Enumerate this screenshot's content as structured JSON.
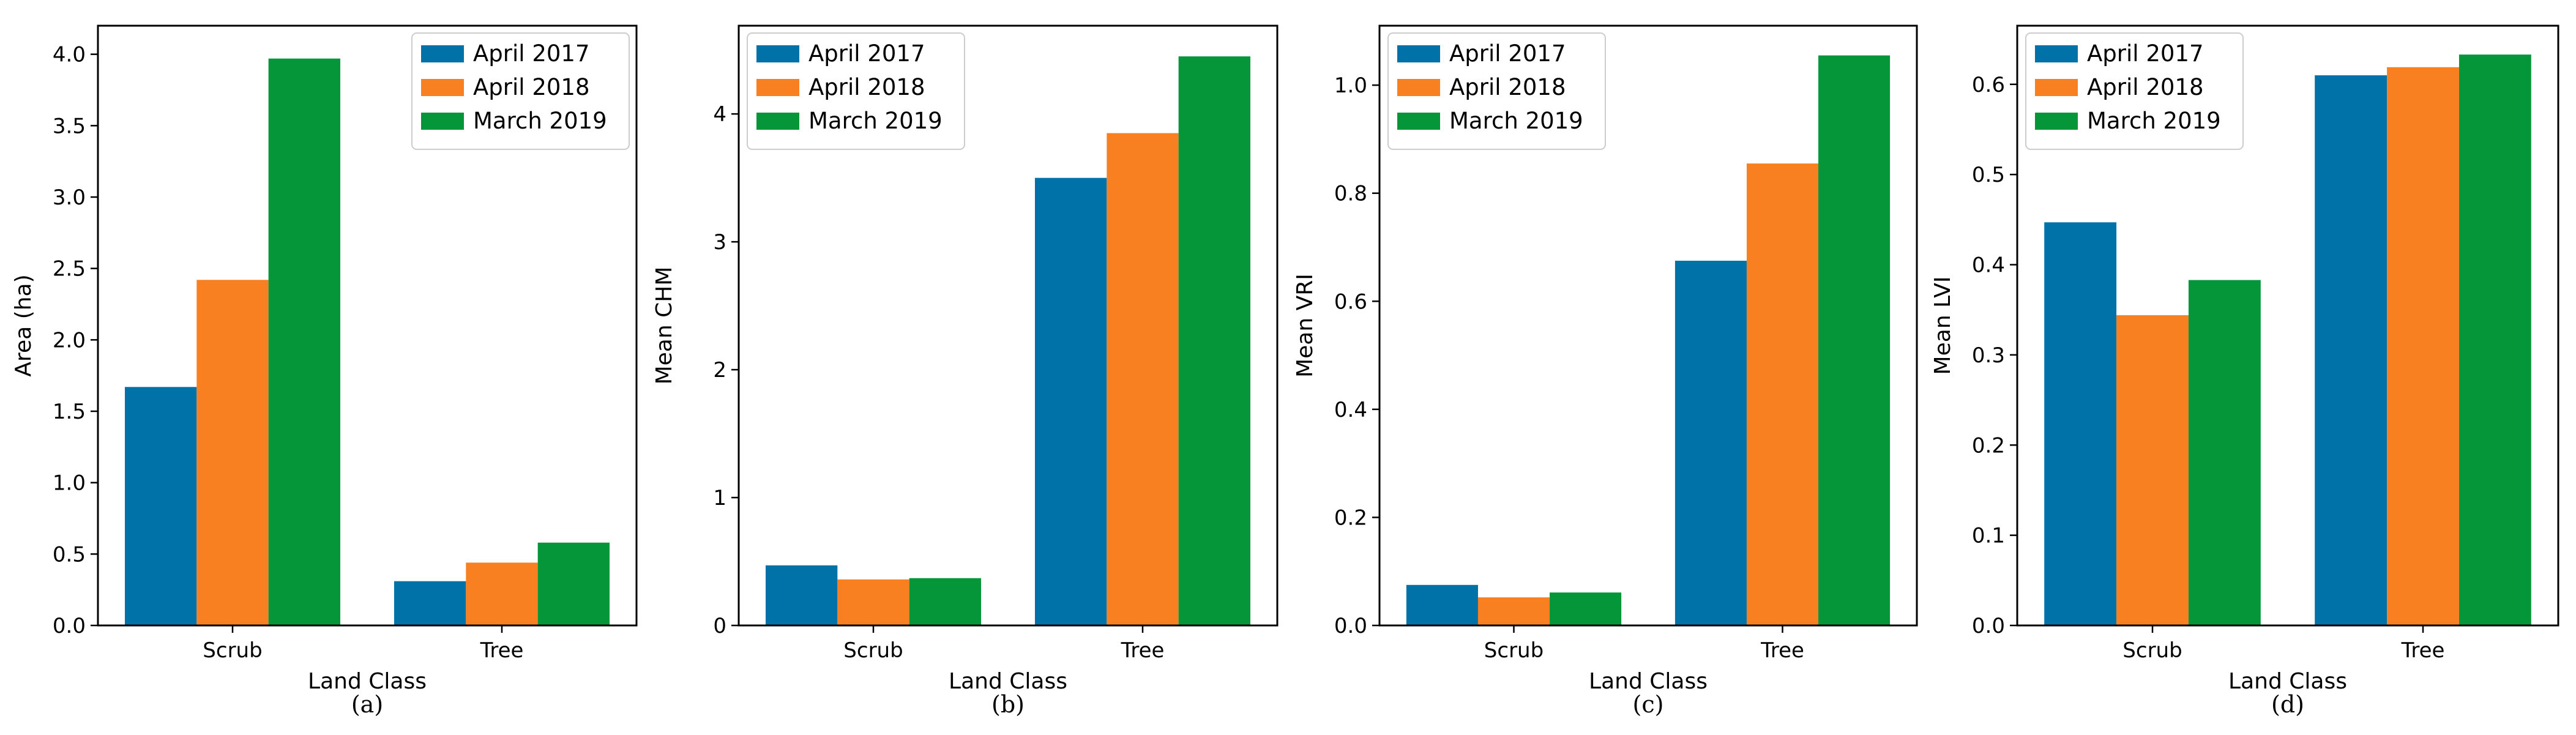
{
  "chart_data": [
    {
      "type": "bar",
      "panel_label": "(a)",
      "categories": [
        "Scrub",
        "Tree"
      ],
      "series": [
        {
          "name": "April 2017",
          "values": [
            1.67,
            0.31
          ]
        },
        {
          "name": "April 2018",
          "values": [
            2.42,
            0.44
          ]
        },
        {
          "name": "March 2019",
          "values": [
            3.97,
            0.58
          ]
        }
      ],
      "xlabel": "Land Class",
      "ylabel": "Area (ha)",
      "ylim": [
        0,
        4.2
      ],
      "yticks": [
        "0.0",
        "0.5",
        "1.0",
        "1.5",
        "2.0",
        "2.5",
        "3.0",
        "3.5",
        "4.0"
      ],
      "legend": "top-right"
    },
    {
      "type": "bar",
      "panel_label": "(b)",
      "categories": [
        "Scrub",
        "Tree"
      ],
      "series": [
        {
          "name": "April 2017",
          "values": [
            0.47,
            3.5
          ]
        },
        {
          "name": "April 2018",
          "values": [
            0.36,
            3.85
          ]
        },
        {
          "name": "March 2019",
          "values": [
            0.37,
            4.45
          ]
        }
      ],
      "xlabel": "Land Class",
      "ylabel": "Mean CHM",
      "ylim": [
        0,
        4.69
      ],
      "yticks": [
        "0",
        "1",
        "2",
        "3",
        "4"
      ],
      "legend": "top-left"
    },
    {
      "type": "bar",
      "panel_label": "(c)",
      "categories": [
        "Scrub",
        "Tree"
      ],
      "series": [
        {
          "name": "April 2017",
          "values": [
            0.075,
            0.675
          ]
        },
        {
          "name": "April 2018",
          "values": [
            0.052,
            0.855
          ]
        },
        {
          "name": "March 2019",
          "values": [
            0.061,
            1.055
          ]
        }
      ],
      "xlabel": "Land Class",
      "ylabel": "Mean VRI",
      "ylim": [
        0,
        1.11
      ],
      "yticks": [
        "0.0",
        "0.2",
        "0.4",
        "0.6",
        "0.8",
        "1.0"
      ],
      "legend": "top-left"
    },
    {
      "type": "bar",
      "panel_label": "(d)",
      "categories": [
        "Scrub",
        "Tree"
      ],
      "series": [
        {
          "name": "April 2017",
          "values": [
            0.447,
            0.61
          ]
        },
        {
          "name": "April 2018",
          "values": [
            0.344,
            0.619
          ]
        },
        {
          "name": "March 2019",
          "values": [
            0.383,
            0.633
          ]
        }
      ],
      "xlabel": "Land Class",
      "ylabel": "Mean LVI",
      "ylim": [
        0,
        0.665
      ],
      "yticks": [
        "0.0",
        "0.1",
        "0.2",
        "0.3",
        "0.4",
        "0.5",
        "0.6"
      ],
      "legend": "top-left"
    }
  ],
  "colors": {
    "April 2017": "#0072a8",
    "April 2018": "#f98020",
    "March 2019": "#05963a"
  }
}
